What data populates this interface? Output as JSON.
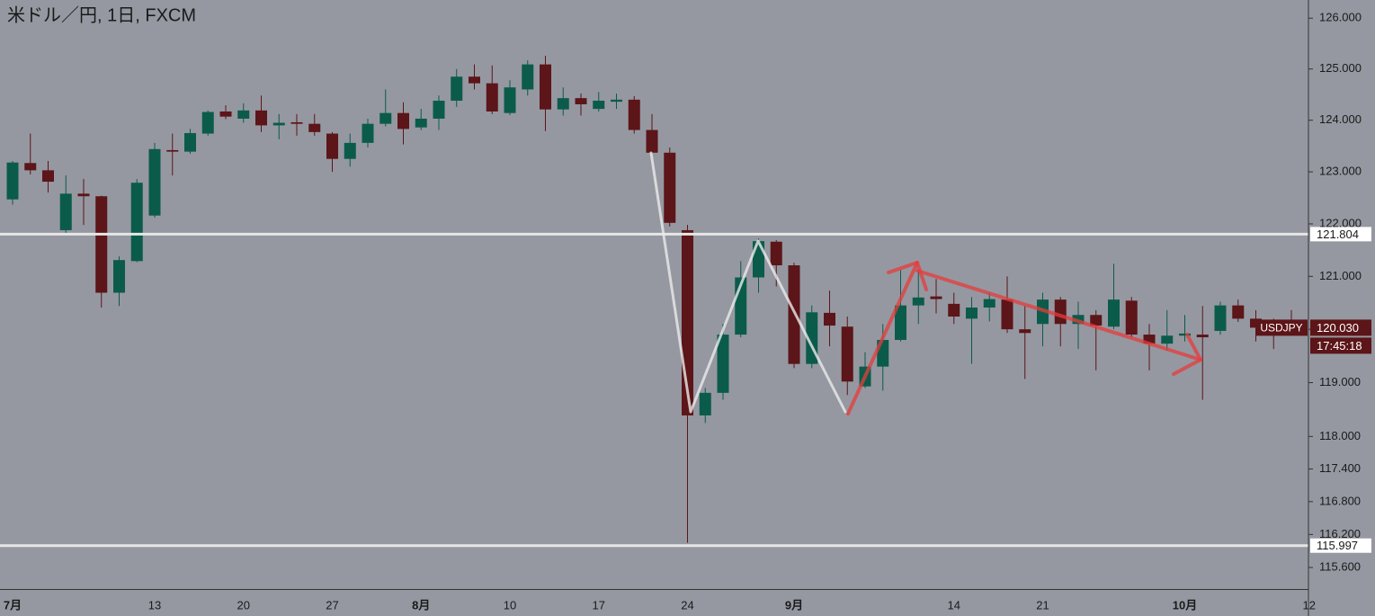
{
  "chart_data": {
    "type": "candlestick",
    "title": "米ドル／円, 1日, FXCM",
    "categories": [
      "7月",
      null,
      null,
      null,
      null,
      null,
      null,
      null,
      "13",
      null,
      null,
      null,
      null,
      "20",
      null,
      null,
      null,
      null,
      "27",
      null,
      null,
      null,
      null,
      "8月",
      null,
      null,
      null,
      null,
      "10",
      null,
      null,
      null,
      null,
      "17",
      null,
      null,
      null,
      null,
      "24",
      null,
      null,
      null,
      null,
      null,
      "9月",
      null,
      null,
      null,
      null,
      null,
      null,
      null,
      null,
      "14",
      null,
      null,
      null,
      null,
      "21",
      null,
      null,
      null,
      null,
      null,
      null,
      null,
      "10月",
      null,
      null,
      null,
      null,
      null,
      null,
      "12"
    ],
    "open": [
      122.47,
      123.17,
      123.03,
      121.88,
      122.58,
      122.53,
      120.69,
      121.29,
      122.16,
      123.42,
      123.39,
      123.74,
      124.17,
      124.03,
      124.19,
      123.9,
      123.96,
      123.93,
      123.74,
      123.25,
      123.56,
      123.93,
      124.14,
      123.86,
      124.03,
      124.38,
      124.85,
      124.72,
      124.14,
      124.6,
      125.09,
      124.21,
      124.43,
      124.22,
      124.36,
      124.4,
      123.81,
      123.37,
      121.88,
      118.39,
      118.81,
      119.9,
      120.98,
      121.66,
      121.21,
      119.35,
      120.31,
      120.05,
      118.93,
      119.3,
      119.8,
      120.45,
      120.62,
      120.48,
      120.2,
      120.41,
      120.56,
      120.0,
      120.1,
      120.56,
      120.1,
      120.27,
      120.05,
      120.54,
      119.9,
      119.73,
      119.88,
      119.9,
      119.97,
      120.45,
      120.2,
      120.1,
      120.08,
      null
    ],
    "high": [
      123.21,
      123.74,
      123.21,
      122.93,
      122.86,
      122.54,
      121.38,
      122.86,
      123.56,
      123.74,
      123.83,
      124.19,
      124.29,
      124.33,
      124.48,
      124.12,
      124.12,
      124.12,
      123.77,
      123.74,
      124.03,
      124.6,
      124.35,
      124.22,
      124.48,
      125.0,
      125.09,
      125.07,
      124.78,
      125.17,
      125.26,
      124.64,
      124.52,
      124.55,
      124.52,
      124.47,
      124.12,
      123.47,
      121.98,
      118.9,
      120.1,
      121.29,
      121.72,
      121.69,
      121.26,
      120.45,
      120.73,
      120.24,
      119.57,
      120.1,
      121.12,
      121.12,
      120.95,
      120.69,
      120.61,
      120.69,
      121.0,
      120.44,
      120.69,
      120.61,
      120.52,
      120.36,
      121.24,
      120.61,
      120.1,
      120.36,
      120.27,
      120.44,
      120.52,
      120.56,
      120.36,
      120.2,
      120.36,
      null
    ],
    "low": [
      122.37,
      122.95,
      122.6,
      121.78,
      121.98,
      120.41,
      120.44,
      121.27,
      122.12,
      122.93,
      123.35,
      123.7,
      124.02,
      123.95,
      123.77,
      123.63,
      123.7,
      123.7,
      123.0,
      123.1,
      123.47,
      123.88,
      123.53,
      123.81,
      123.81,
      124.26,
      124.6,
      124.12,
      124.1,
      124.48,
      123.79,
      124.09,
      124.09,
      124.17,
      124.22,
      123.74,
      123.35,
      121.95,
      116.05,
      118.25,
      118.68,
      119.85,
      120.69,
      120.81,
      119.27,
      119.27,
      119.68,
      118.77,
      118.9,
      118.85,
      119.77,
      120.1,
      120.3,
      120.1,
      119.35,
      120.15,
      119.93,
      119.07,
      119.68,
      119.68,
      119.63,
      119.23,
      120.0,
      119.85,
      119.23,
      119.6,
      119.77,
      118.68,
      119.9,
      120.14,
      119.77,
      119.63,
      119.88,
      null
    ],
    "close": [
      123.18,
      123.03,
      122.81,
      122.58,
      122.53,
      120.69,
      121.31,
      122.79,
      123.44,
      123.39,
      123.75,
      124.16,
      124.07,
      124.19,
      123.9,
      123.95,
      123.93,
      123.77,
      123.25,
      123.56,
      123.93,
      124.14,
      123.83,
      124.03,
      124.38,
      124.85,
      124.72,
      124.17,
      124.64,
      125.09,
      124.21,
      124.43,
      124.31,
      124.38,
      124.4,
      123.81,
      123.37,
      122.02,
      118.39,
      118.81,
      119.9,
      120.98,
      121.67,
      121.21,
      119.35,
      120.32,
      120.07,
      119.02,
      119.3,
      119.8,
      120.45,
      120.6,
      120.57,
      120.24,
      120.41,
      120.57,
      120.0,
      119.93,
      120.56,
      120.1,
      120.27,
      120.07,
      120.56,
      119.9,
      119.73,
      119.88,
      119.92,
      119.85,
      120.45,
      120.2,
      120.03,
      119.97,
      120.03,
      null
    ],
    "up_color": "#0b5b4a",
    "down_color": "#5c1518",
    "log_scale": true,
    "ylim": [
      115.21,
      126.36
    ],
    "yticks": [
      {
        "value": 126,
        "label": "126.000"
      },
      {
        "value": 125,
        "label": "125.000"
      },
      {
        "value": 124,
        "label": "124.000"
      },
      {
        "value": 123,
        "label": "123.000"
      },
      {
        "value": 122,
        "label": "122.000"
      },
      {
        "value": 121,
        "label": "121.000"
      },
      {
        "value": 120,
        "label": "120.000"
      },
      {
        "value": 119,
        "label": "119.000"
      },
      {
        "value": 118,
        "label": "118.000"
      },
      {
        "value": 117.4,
        "label": "117.400"
      },
      {
        "value": 116.8,
        "label": "116.800"
      },
      {
        "value": 116.2,
        "label": "116.200"
      },
      {
        "value": 115.6,
        "label": "115.600"
      }
    ],
    "h_lines": [
      121.804,
      115.997
    ],
    "h_line_color": "#e6e6e6",
    "symbol": "USDJPY",
    "last_price": {
      "value": 120.03,
      "label": "120.030"
    },
    "countdown": "17:45:18"
  }
}
